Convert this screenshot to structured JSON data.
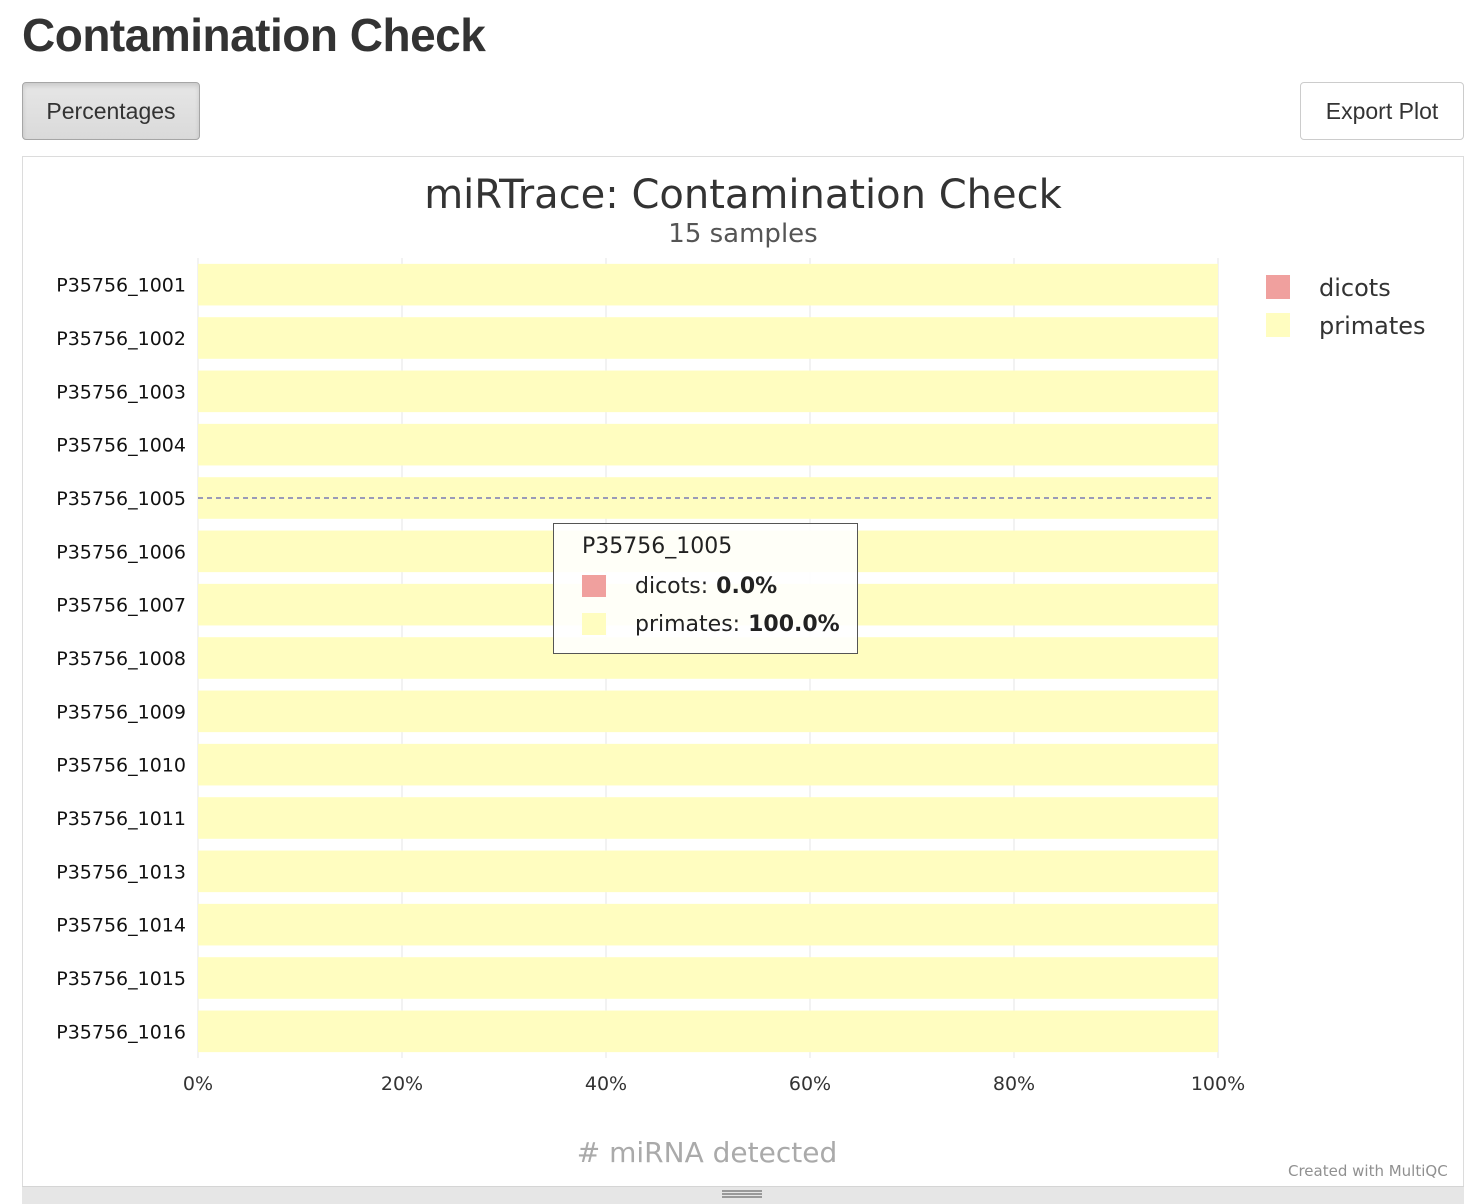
{
  "page": {
    "title": "Contamination Check",
    "percentages_label": "Percentages",
    "export_label": "Export Plot",
    "credit": "Created with MultiQC"
  },
  "chart_data": {
    "type": "bar",
    "orientation": "horizontal",
    "stacked": true,
    "title": "miRTrace: Contamination Check",
    "subtitle": "15 samples",
    "xlabel": "# miRNA detected",
    "xlim": [
      0,
      100
    ],
    "x_ticks": [
      "0%",
      "20%",
      "40%",
      "60%",
      "80%",
      "100%"
    ],
    "categories": [
      "P35756_1001",
      "P35756_1002",
      "P35756_1003",
      "P35756_1004",
      "P35756_1005",
      "P35756_1006",
      "P35756_1007",
      "P35756_1008",
      "P35756_1009",
      "P35756_1010",
      "P35756_1011",
      "P35756_1013",
      "P35756_1014",
      "P35756_1015",
      "P35756_1016"
    ],
    "series": [
      {
        "name": "dicots",
        "color": "#f0a09e",
        "values": [
          0,
          0,
          0,
          0,
          0,
          0,
          0,
          0,
          0,
          0,
          0,
          0,
          0,
          0,
          0
        ]
      },
      {
        "name": "primates",
        "color": "#fffdc0",
        "values": [
          100,
          100,
          100,
          100,
          100,
          100,
          100,
          100,
          100,
          100,
          100,
          100,
          100,
          100,
          100
        ]
      }
    ],
    "legend_position": "top-right",
    "grid": true,
    "hover": {
      "sample": "P35756_1005",
      "rows": [
        {
          "name": "dicots",
          "value": "0.0%",
          "color": "#f0a09e"
        },
        {
          "name": "primates",
          "value": "100.0%",
          "color": "#fffdc0"
        }
      ]
    }
  }
}
